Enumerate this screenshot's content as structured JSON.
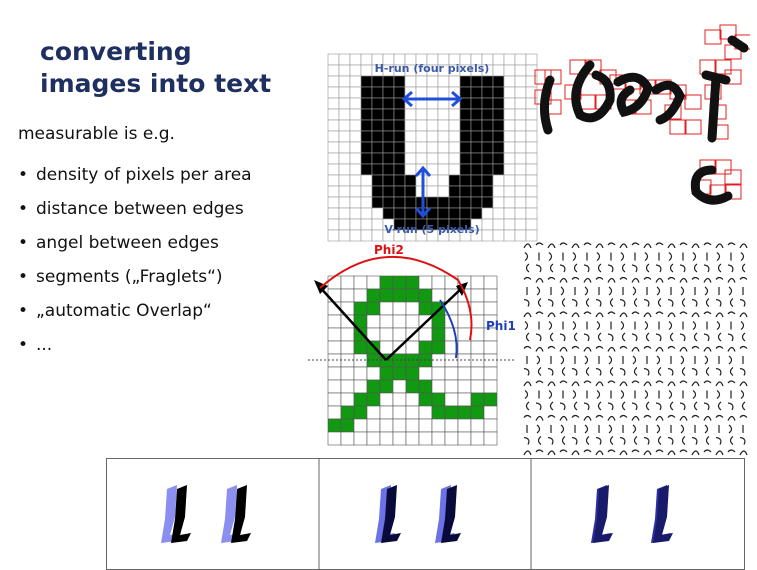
{
  "slide": {
    "title_lines": [
      "converting",
      "images into text"
    ],
    "intro": "measurable is e.g.",
    "bullets": [
      "density of pixels per area",
      "distance between edges",
      "angel between edges",
      "segments („Fraglets“)",
      "„automatic Overlap“",
      "..."
    ]
  },
  "figure_u": {
    "h_run_label": "H-run (four pixels)",
    "v_run_label": "V-run (5 pixels)",
    "colors": {
      "text": "#3b5ba8",
      "arrow": "#1f4fd8"
    }
  },
  "figure_angle": {
    "phi2_label": "Phi2",
    "phi1_label": "Phi1",
    "colors": {
      "pixels": "#119911",
      "phi2": "#d11",
      "phi1": "#1f3fb8"
    }
  },
  "bullet_symbol": "•"
}
